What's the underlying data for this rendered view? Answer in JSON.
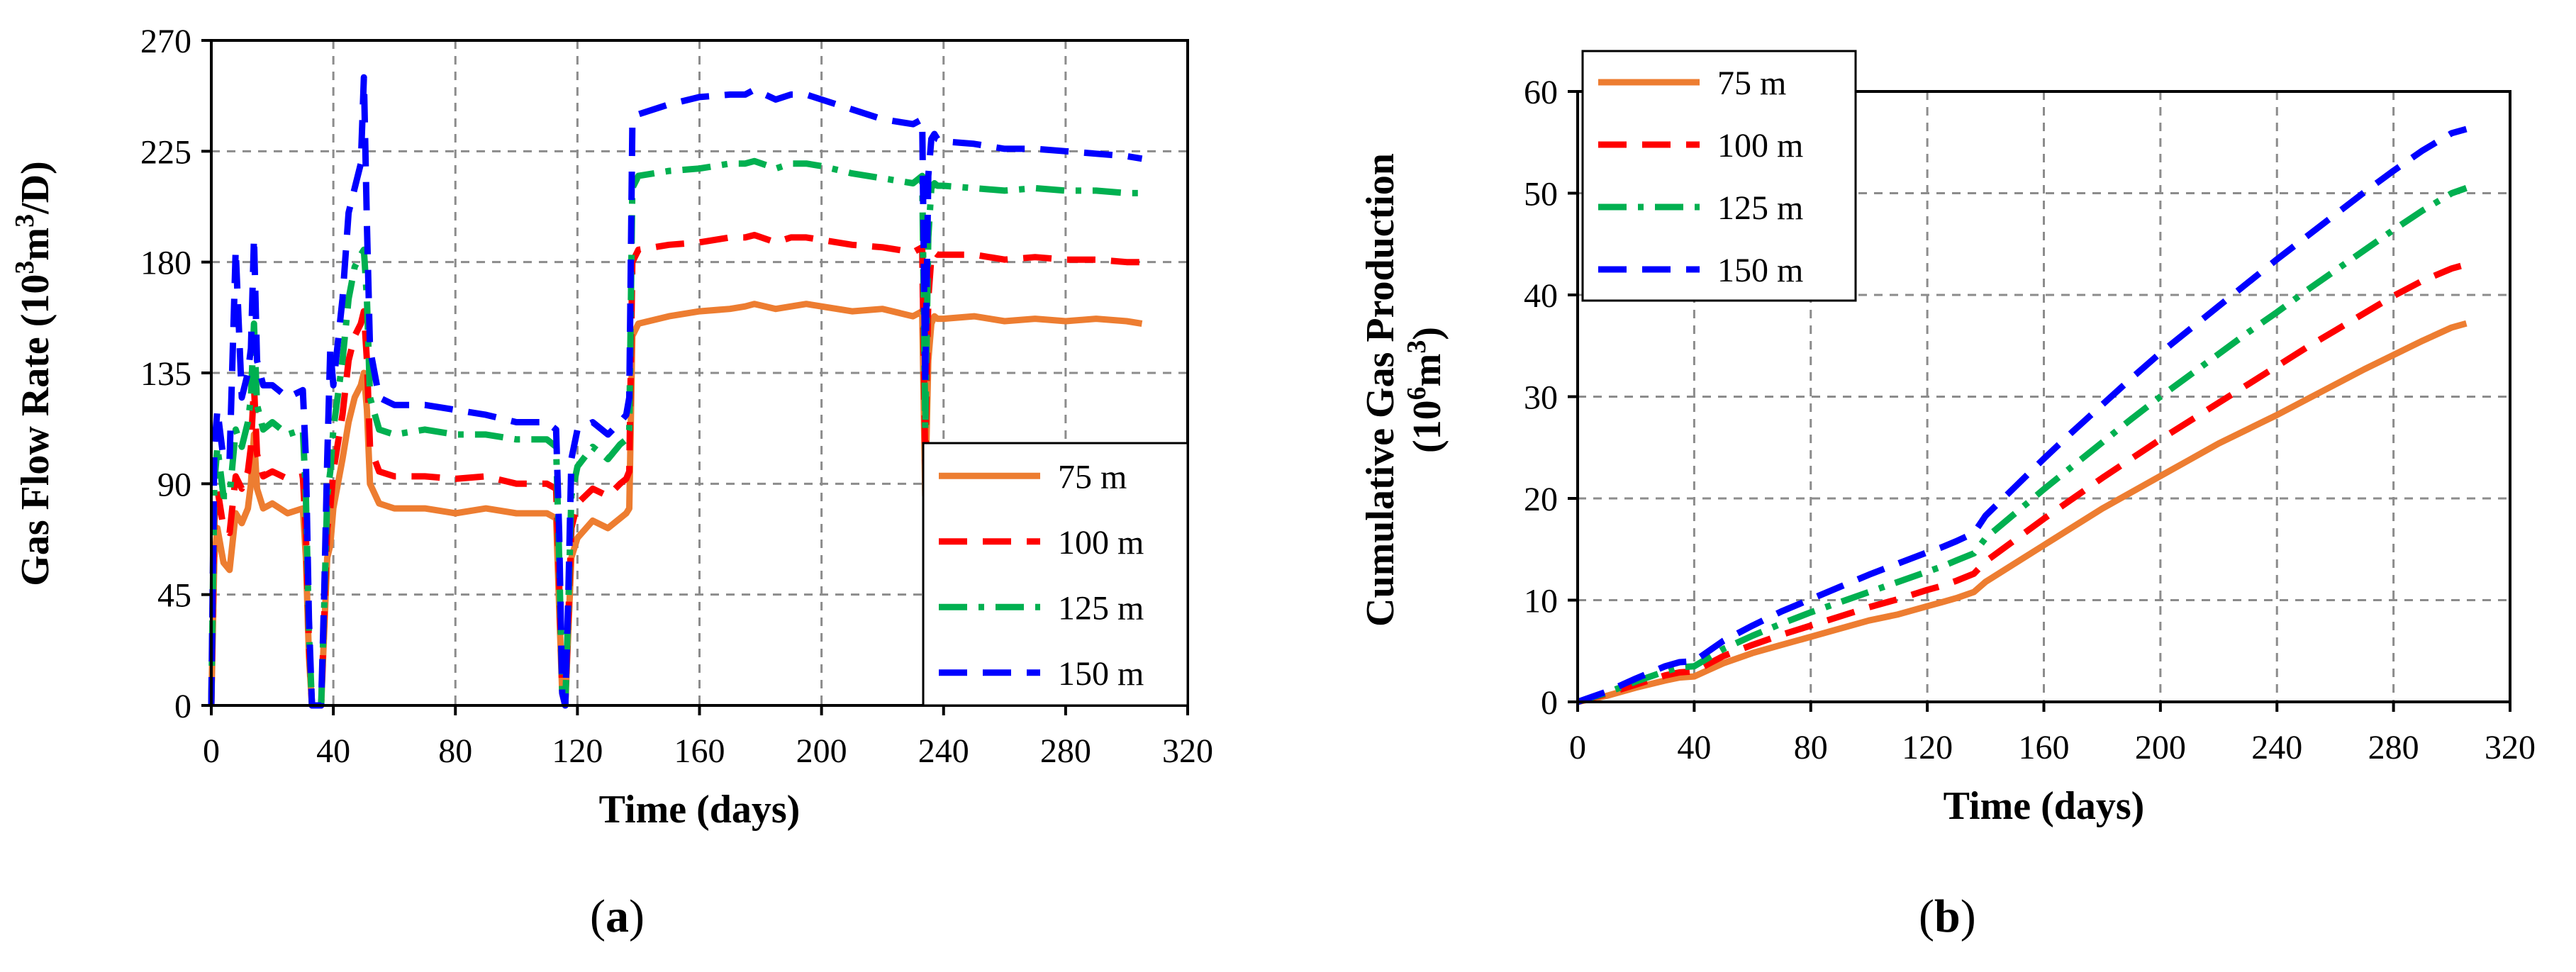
{
  "panels": {
    "a": {
      "open": "(",
      "letter": "a",
      "close": ")"
    },
    "b": {
      "open": "(",
      "letter": "b",
      "close": ")"
    }
  },
  "chart_data": [
    {
      "type": "line",
      "panel": "a",
      "title": "",
      "xlabel": "Time (days)",
      "ylabel": "Gas Flow Rate (10³m³/D)",
      "ylabel_parts": {
        "pre": "Gas Flow Rate (10",
        "sup1": "3",
        "mid": "m",
        "sup2": "3",
        "post": "/D)"
      },
      "xlim": [
        0,
        320
      ],
      "ylim": [
        0,
        270
      ],
      "xticks": [
        0,
        40,
        80,
        120,
        160,
        200,
        240,
        280,
        320
      ],
      "yticks": [
        0,
        45,
        90,
        135,
        180,
        225,
        270
      ],
      "grid": true,
      "legend_position": "bottom-right",
      "series": [
        {
          "name": "75 m",
          "color": "#ED7D31",
          "dash": "solid",
          "x": [
            0,
            1,
            2,
            4,
            6,
            8,
            10,
            12,
            13,
            14,
            15,
            17,
            20,
            25,
            30,
            31,
            32,
            33,
            34,
            36,
            37,
            38,
            39,
            40,
            43,
            45,
            47,
            49,
            50,
            51,
            52,
            55,
            60,
            70,
            80,
            90,
            100,
            110,
            113,
            114,
            115,
            116,
            117,
            118,
            120,
            125,
            130,
            134,
            136,
            137,
            138,
            140,
            150,
            160,
            170,
            175,
            178,
            185,
            190,
            195,
            200,
            210,
            220,
            230,
            233,
            234,
            235,
            236,
            237,
            238,
            240,
            250,
            260,
            270,
            280,
            290,
            300,
            305
          ],
          "y": [
            0,
            60,
            72,
            58,
            55,
            78,
            74,
            80,
            90,
            110,
            88,
            80,
            82,
            78,
            80,
            60,
            20,
            0,
            0,
            0,
            30,
            60,
            65,
            80,
            100,
            115,
            125,
            130,
            135,
            120,
            90,
            82,
            80,
            80,
            78,
            80,
            78,
            78,
            76,
            40,
            5,
            0,
            30,
            60,
            68,
            75,
            72,
            76,
            78,
            80,
            150,
            155,
            158,
            160,
            161,
            162,
            163,
            161,
            162,
            163,
            162,
            160,
            161,
            158,
            160,
            85,
            140,
            155,
            158,
            157,
            157,
            158,
            156,
            157,
            156,
            157,
            156,
            155
          ]
        },
        {
          "name": "100 m",
          "color": "#FF0000",
          "dash": "dash",
          "x": [
            0,
            1,
            2,
            4,
            6,
            8,
            10,
            12,
            13,
            14,
            15,
            17,
            20,
            25,
            30,
            31,
            32,
            33,
            34,
            36,
            37,
            38,
            39,
            40,
            43,
            45,
            47,
            49,
            50,
            51,
            52,
            55,
            60,
            70,
            80,
            90,
            100,
            110,
            113,
            114,
            115,
            116,
            117,
            118,
            120,
            125,
            130,
            134,
            136,
            137,
            138,
            140,
            150,
            160,
            170,
            175,
            178,
            185,
            190,
            195,
            200,
            210,
            220,
            230,
            233,
            234,
            235,
            236,
            237,
            238,
            240,
            250,
            260,
            270,
            280,
            290,
            300,
            305
          ],
          "y": [
            0,
            75,
            88,
            72,
            70,
            93,
            88,
            95,
            105,
            130,
            102,
            93,
            95,
            92,
            93,
            70,
            25,
            0,
            0,
            0,
            35,
            72,
            80,
            95,
            118,
            140,
            150,
            155,
            160,
            140,
            105,
            95,
            93,
            93,
            92,
            93,
            90,
            90,
            88,
            50,
            5,
            0,
            35,
            72,
            82,
            88,
            85,
            90,
            92,
            95,
            180,
            185,
            187,
            188,
            190,
            190,
            191,
            188,
            190,
            190,
            189,
            187,
            186,
            184,
            186,
            98,
            165,
            182,
            184,
            183,
            183,
            183,
            181,
            182,
            181,
            181,
            180,
            180
          ]
        },
        {
          "name": "125 m",
          "color": "#00B050",
          "dash": "dashdot",
          "x": [
            0,
            1,
            2,
            4,
            6,
            8,
            10,
            12,
            13,
            14,
            15,
            17,
            20,
            25,
            30,
            31,
            32,
            33,
            34,
            36,
            37,
            38,
            39,
            40,
            43,
            45,
            47,
            49,
            50,
            51,
            52,
            55,
            60,
            70,
            80,
            90,
            100,
            110,
            113,
            114,
            115,
            116,
            117,
            118,
            120,
            125,
            130,
            134,
            136,
            137,
            138,
            140,
            150,
            160,
            170,
            175,
            178,
            185,
            190,
            195,
            200,
            210,
            220,
            230,
            233,
            234,
            235,
            236,
            237,
            238,
            240,
            250,
            260,
            270,
            280,
            290,
            300,
            305
          ],
          "y": [
            0,
            90,
            105,
            85,
            85,
            112,
            105,
            115,
            125,
            155,
            122,
            112,
            115,
            110,
            112,
            85,
            30,
            0,
            0,
            0,
            40,
            85,
            95,
            112,
            140,
            165,
            178,
            183,
            185,
            165,
            125,
            112,
            110,
            112,
            110,
            110,
            108,
            108,
            105,
            60,
            5,
            0,
            40,
            85,
            97,
            105,
            100,
            106,
            108,
            112,
            210,
            215,
            217,
            218,
            220,
            220,
            221,
            218,
            220,
            220,
            219,
            216,
            214,
            212,
            215,
            112,
            190,
            210,
            212,
            211,
            211,
            210,
            209,
            210,
            209,
            209,
            208,
            208
          ]
        },
        {
          "name": "150 m",
          "color": "#0000FF",
          "dash": "dash",
          "x": [
            0,
            1,
            2,
            4,
            6,
            8,
            10,
            12,
            13,
            14,
            15,
            17,
            20,
            25,
            30,
            31,
            32,
            33,
            34,
            36,
            37,
            38,
            39,
            40,
            43,
            45,
            47,
            49,
            50,
            51,
            52,
            55,
            60,
            70,
            80,
            90,
            100,
            110,
            113,
            114,
            115,
            116,
            117,
            118,
            120,
            125,
            130,
            134,
            136,
            137,
            138,
            140,
            150,
            160,
            170,
            175,
            178,
            185,
            190,
            195,
            200,
            210,
            220,
            230,
            233,
            234,
            235,
            236,
            237,
            238,
            240,
            250,
            260,
            270,
            280,
            290,
            300,
            305
          ],
          "y": [
            0,
            105,
            120,
            100,
            100,
            185,
            125,
            135,
            145,
            190,
            140,
            130,
            130,
            125,
            128,
            100,
            35,
            0,
            0,
            0,
            45,
            100,
            145,
            130,
            165,
            200,
            210,
            220,
            255,
            195,
            145,
            125,
            122,
            122,
            120,
            118,
            115,
            115,
            112,
            70,
            5,
            0,
            45,
            100,
            112,
            115,
            110,
            115,
            118,
            125,
            235,
            240,
            244,
            247,
            248,
            248,
            250,
            246,
            248,
            248,
            246,
            242,
            238,
            236,
            238,
            130,
            215,
            230,
            232,
            230,
            229,
            228,
            226,
            226,
            225,
            224,
            223,
            222
          ]
        }
      ]
    },
    {
      "type": "line",
      "panel": "b",
      "title": "",
      "xlabel": "Time (days)",
      "ylabel": "Cumulative Gas Production (10⁶m³)",
      "ylabel_line1": "Cumulative Gas Production",
      "ylabel_parts": {
        "pre": "(10",
        "sup1": "6",
        "mid": "m",
        "sup2": "3",
        "post": ")"
      },
      "xlim": [
        0,
        320
      ],
      "ylim": [
        0,
        60
      ],
      "xticks": [
        0,
        40,
        80,
        120,
        160,
        200,
        240,
        280,
        320
      ],
      "yticks": [
        0,
        10,
        20,
        30,
        40,
        50,
        60
      ],
      "grid": true,
      "legend_position": "top-left",
      "series": [
        {
          "name": "75 m",
          "color": "#ED7D31",
          "dash": "solid",
          "x": [
            0,
            10,
            20,
            30,
            35,
            40,
            50,
            60,
            70,
            80,
            90,
            100,
            110,
            120,
            125,
            130,
            136,
            140,
            150,
            160,
            170,
            180,
            190,
            200,
            210,
            220,
            230,
            240,
            250,
            260,
            270,
            280,
            290,
            300,
            305
          ],
          "y": [
            0,
            0.6,
            1.4,
            2.1,
            2.4,
            2.5,
            3.8,
            4.8,
            5.6,
            6.4,
            7.2,
            8.0,
            8.6,
            9.4,
            9.8,
            10.2,
            10.8,
            11.8,
            13.6,
            15.4,
            17.2,
            19.0,
            20.6,
            22.2,
            23.8,
            25.4,
            26.8,
            28.2,
            29.7,
            31.2,
            32.7,
            34.1,
            35.5,
            36.8,
            37.2
          ]
        },
        {
          "name": "100 m",
          "color": "#FF0000",
          "dash": "dash",
          "x": [
            0,
            10,
            20,
            30,
            35,
            40,
            50,
            60,
            70,
            80,
            90,
            100,
            110,
            120,
            125,
            130,
            136,
            140,
            150,
            160,
            170,
            180,
            190,
            200,
            210,
            220,
            230,
            240,
            250,
            260,
            270,
            280,
            290,
            300,
            305
          ],
          "y": [
            0,
            0.8,
            1.7,
            2.6,
            2.9,
            3.0,
            4.5,
            5.6,
            6.6,
            7.5,
            8.4,
            9.3,
            10.1,
            11.0,
            11.4,
            11.9,
            12.6,
            13.8,
            15.9,
            18.0,
            20.0,
            22.0,
            23.9,
            25.8,
            27.6,
            29.4,
            31.2,
            33.0,
            34.8,
            36.5,
            38.2,
            39.9,
            41.4,
            42.6,
            43.0
          ]
        },
        {
          "name": "125 m",
          "color": "#00B050",
          "dash": "dashdot",
          "x": [
            0,
            10,
            20,
            30,
            35,
            40,
            50,
            60,
            70,
            80,
            90,
            100,
            110,
            120,
            125,
            130,
            136,
            140,
            150,
            160,
            170,
            180,
            190,
            200,
            210,
            220,
            230,
            240,
            250,
            260,
            270,
            280,
            290,
            300,
            305
          ],
          "y": [
            0,
            0.9,
            2.0,
            3.0,
            3.4,
            3.5,
            5.2,
            6.5,
            7.7,
            8.8,
            9.8,
            10.8,
            11.8,
            12.8,
            13.3,
            13.9,
            14.6,
            16.1,
            18.5,
            20.9,
            23.2,
            25.5,
            27.8,
            30.0,
            32.1,
            34.2,
            36.3,
            38.3,
            40.4,
            42.4,
            44.4,
            46.4,
            48.3,
            50.0,
            50.5
          ]
        },
        {
          "name": "150 m",
          "color": "#0000FF",
          "dash": "dash",
          "x": [
            0,
            10,
            20,
            30,
            35,
            40,
            50,
            60,
            70,
            80,
            90,
            100,
            110,
            120,
            125,
            130,
            136,
            140,
            150,
            160,
            170,
            180,
            190,
            200,
            210,
            220,
            230,
            240,
            250,
            260,
            270,
            280,
            290,
            300,
            305
          ],
          "y": [
            0,
            1.0,
            2.3,
            3.5,
            3.9,
            4.0,
            6.0,
            7.5,
            8.9,
            10.1,
            11.3,
            12.5,
            13.6,
            14.7,
            15.2,
            15.8,
            16.6,
            18.3,
            21.1,
            23.9,
            26.6,
            29.2,
            31.8,
            34.3,
            36.6,
            38.9,
            41.2,
            43.5,
            45.7,
            47.9,
            50.1,
            52.2,
            54.2,
            55.9,
            56.3
          ]
        }
      ]
    }
  ]
}
